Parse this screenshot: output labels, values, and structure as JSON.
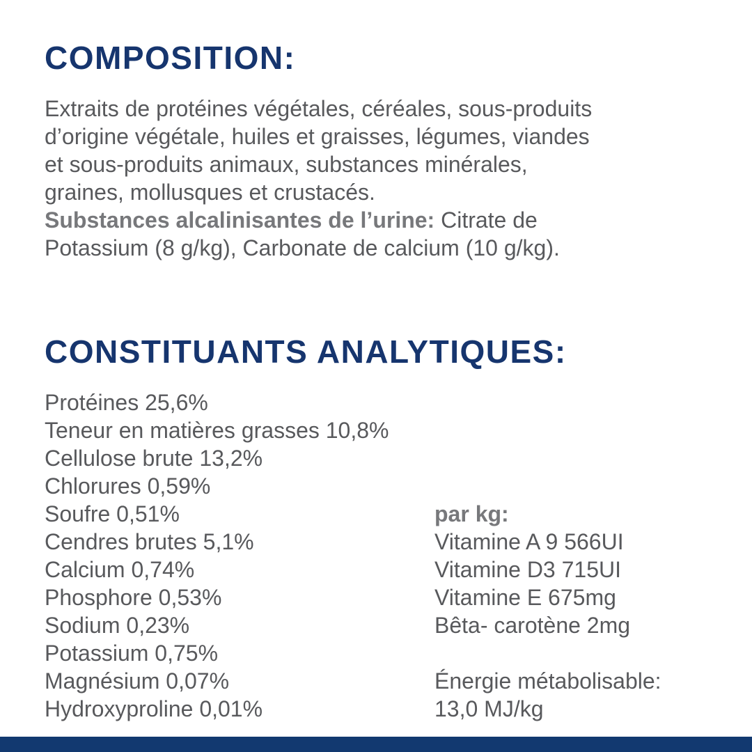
{
  "page": {
    "colors": {
      "heading_navy": "#16356e",
      "body_gray": "#58595c",
      "bold_gray": "#77787b",
      "bottom_bar_navy": "#123970",
      "background": "#ffffff"
    }
  },
  "composition": {
    "heading": "COMPOSITION:",
    "lines": [
      "Extraits de protéines végétales, céréales, sous-produits",
      "d’origine végétale, huiles et graisses, légumes, viandes",
      "et sous-produits animaux, substances minérales,",
      "graines, mollusques et crustacés."
    ],
    "alkalizing_label": "Substances alcalinisantes de l’urine:",
    "alkalizing_rest": " Citrate de",
    "final_line": "Potassium (8 g/kg), Carbonate de calcium (10 g/kg)."
  },
  "analytics": {
    "heading": "CONSTITUANTS ANALYTIQUES:",
    "left": [
      "Protéines 25,6%",
      "Teneur en matières grasses 10,8%",
      "Cellulose brute 13,2%",
      "Chlorures 0,59%",
      "Soufre 0,51%",
      "Cendres brutes 5,1%",
      "Calcium 0,74%",
      "Phosphore 0,53%",
      "Sodium 0,23%",
      "Potassium 0,75%",
      "Magnésium 0,07%",
      "Hydroxyproline 0,01%"
    ],
    "per_kg_label": "par kg:",
    "per_kg": [
      "Vitamine A 9 566UI",
      "Vitamine D3 715UI",
      "Vitamine E 675mg",
      "Bêta- carotène 2mg"
    ],
    "energy_lines": [
      "Énergie métabolisable:",
      "13,0 MJ/kg"
    ]
  }
}
